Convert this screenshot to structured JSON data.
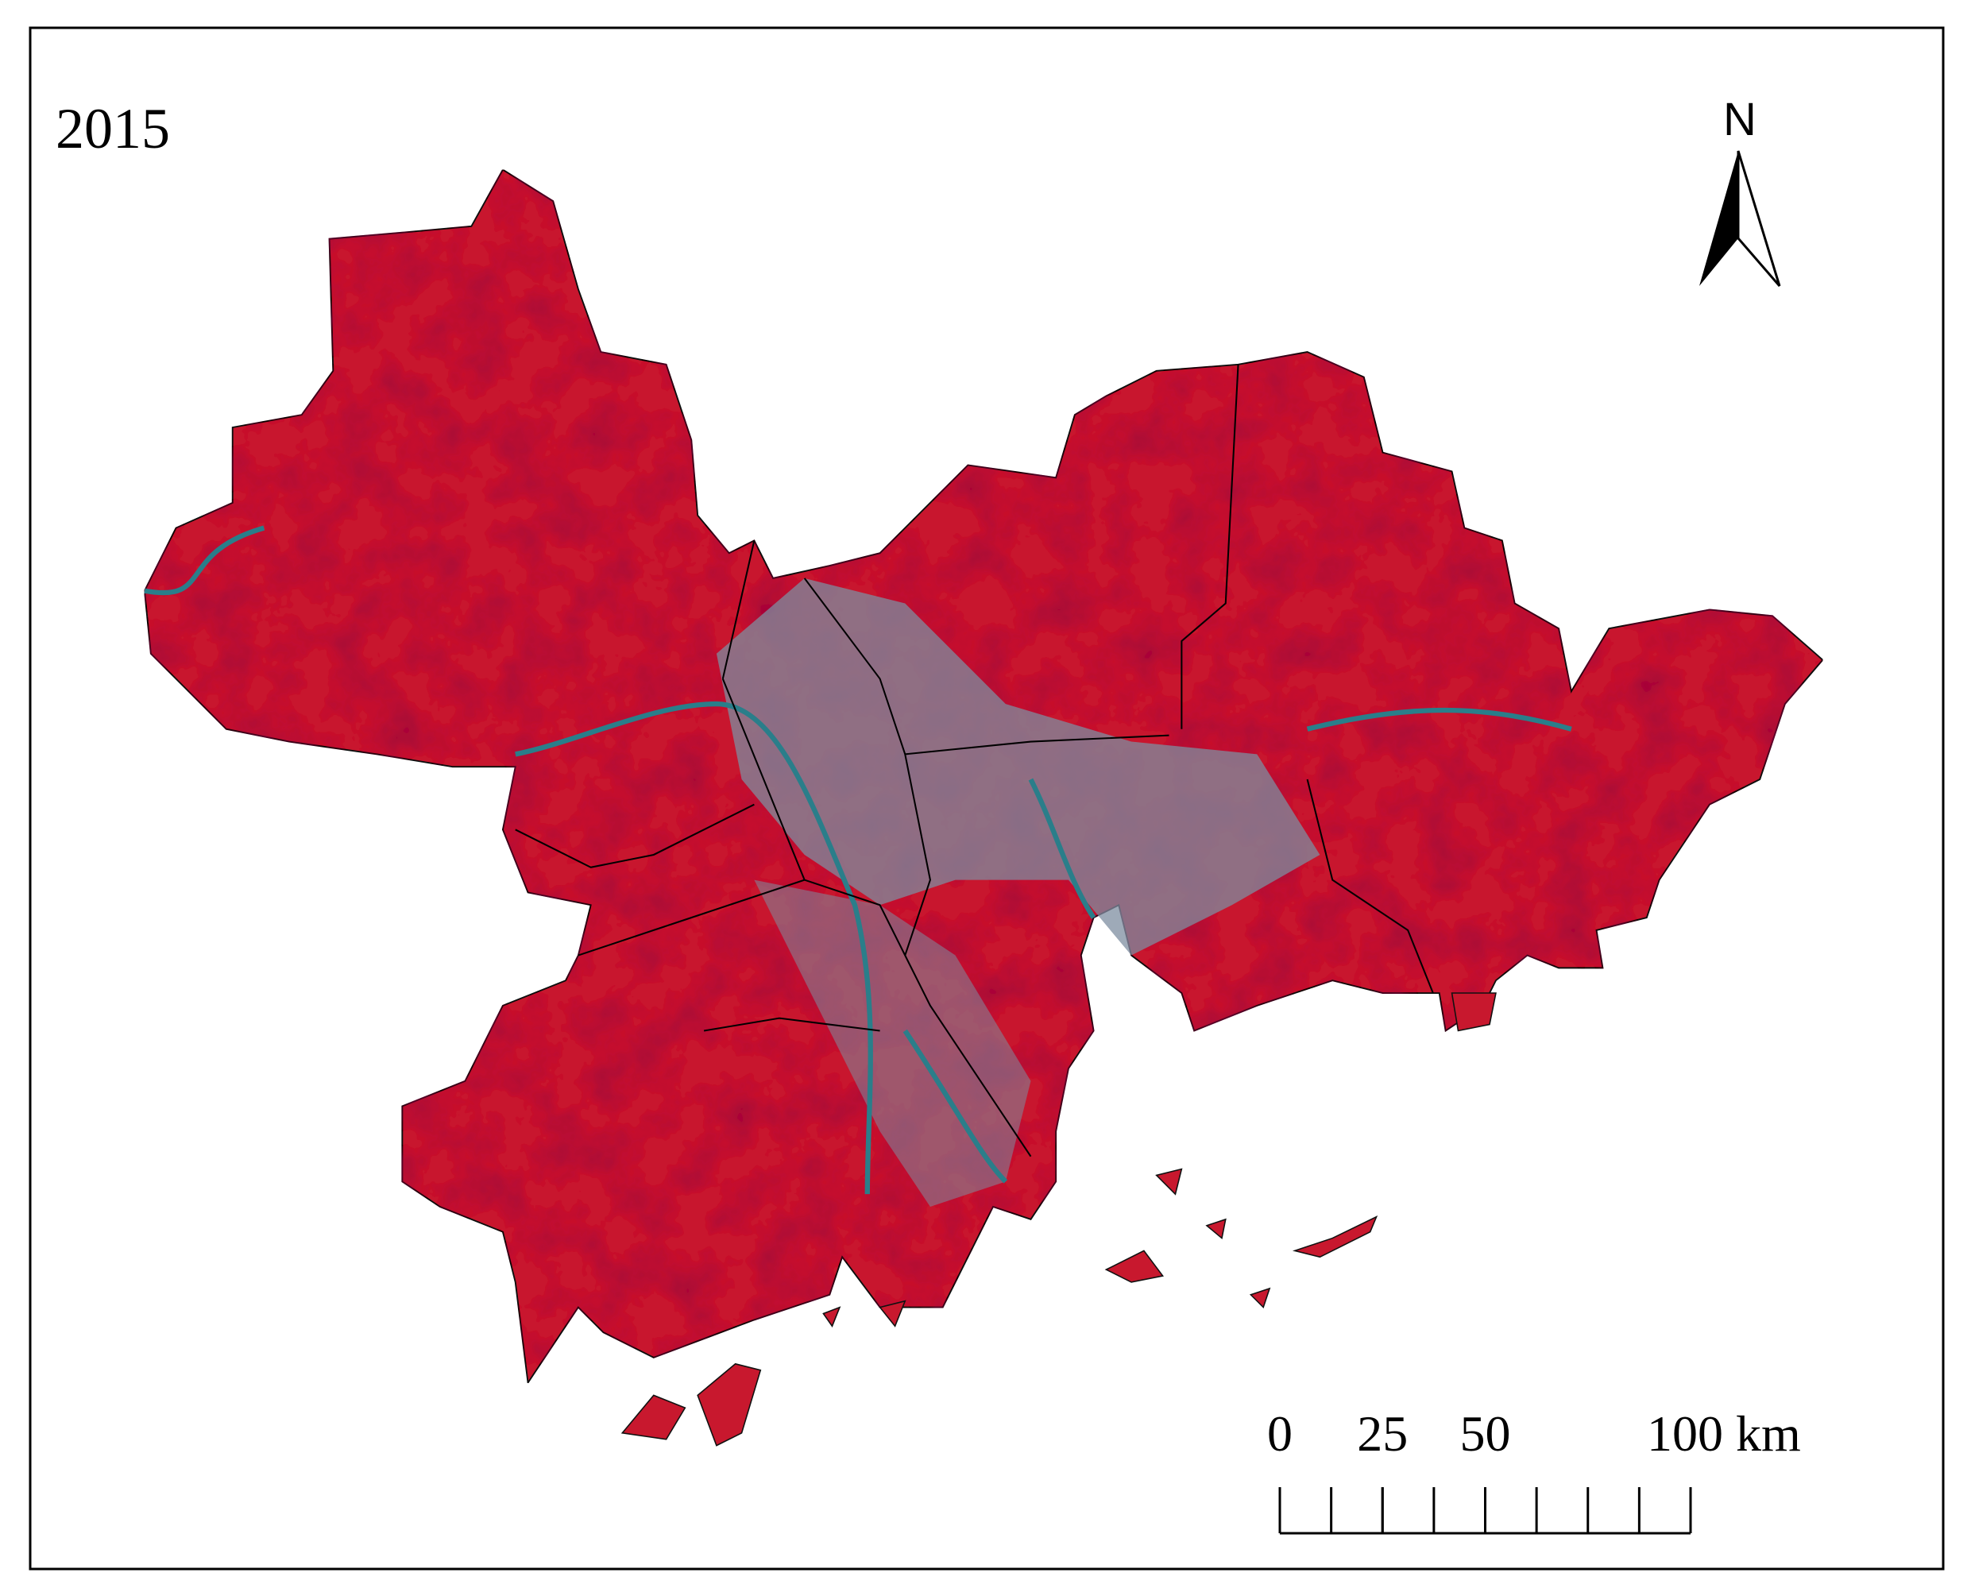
{
  "map": {
    "title": "2015",
    "north_label": "N",
    "scale_bar": {
      "ticks": [
        0,
        25,
        50,
        {
          "value": 100,
          "label": "100 km"
        }
      ]
    }
  }
}
